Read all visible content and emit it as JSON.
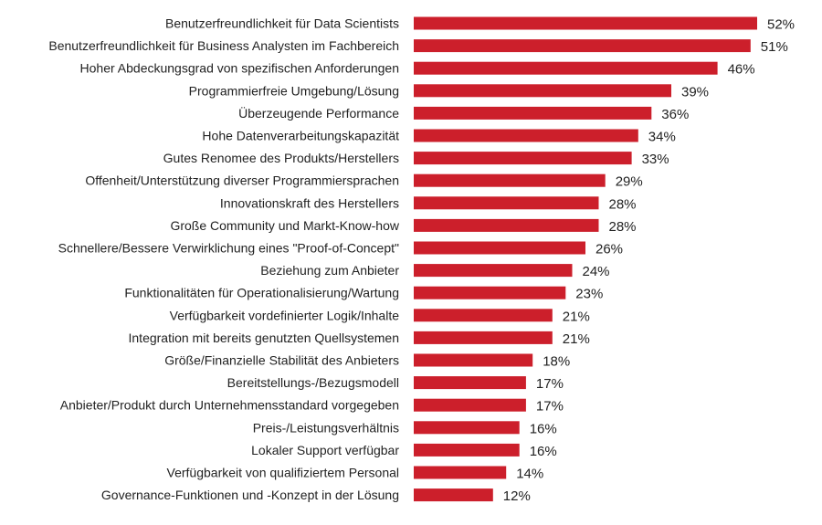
{
  "chart_data": {
    "type": "bar",
    "orientation": "horizontal",
    "title": "",
    "xlabel": "",
    "ylabel": "",
    "xlim": [
      0,
      52
    ],
    "grid": false,
    "bar_color": "#cc1f2b",
    "value_suffix": "%",
    "categories": [
      "Benutzerfreundlichkeit für Data Scientists",
      "Benutzerfreundlichkeit für Business Analysten im Fachbereich",
      "Hoher Abdeckungsgrad von spezifischen Anforderungen",
      "Programmierfreie Umgebung/Lösung",
      "Überzeugende Performance",
      "Hohe Datenverarbeitungskapazität",
      "Gutes Renomee des Produkts/Herstellers",
      "Offenheit/Unterstützung diverser Programmiersprachen",
      "Innovationskraft des Herstellers",
      "Große Community und Markt-Know-how",
      "Schnellere/Bessere Verwirklichung eines \"Proof-of-Concept\"",
      "Beziehung zum Anbieter",
      "Funktionalitäten für Operationalisierung/Wartung",
      "Verfügbarkeit vordefinierter Logik/Inhalte",
      "Integration mit bereits genutzten Quellsystemen",
      "Größe/Finanzielle Stabilität des Anbieters",
      "Bereitstellungs-/Bezugsmodell",
      "Anbieter/Produkt durch Unternehmensstandard vorgegeben",
      "Preis-/Leistungsverhältnis",
      "Lokaler Support verfügbar",
      "Verfügbarkeit von qualifiziertem Personal",
      "Governance-Funktionen und -Konzept in der Lösung"
    ],
    "values": [
      52,
      51,
      46,
      39,
      36,
      34,
      33,
      29,
      28,
      28,
      26,
      24,
      23,
      21,
      21,
      18,
      17,
      17,
      16,
      16,
      14,
      12
    ]
  }
}
